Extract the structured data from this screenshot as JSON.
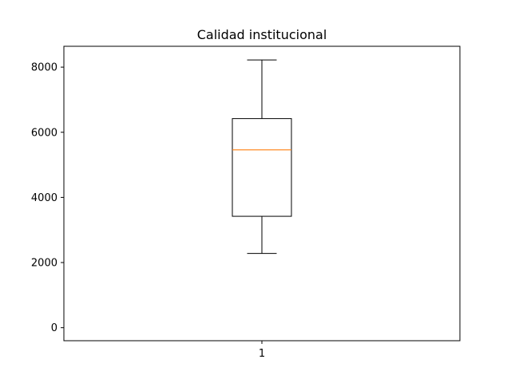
{
  "chart_data": {
    "type": "boxplot",
    "title": "Calidad institucional",
    "xlabel": "",
    "ylabel": "",
    "categories": [
      "1"
    ],
    "series": [
      {
        "whisker_low": 2280,
        "q1": 3420,
        "median": 5460,
        "q3": 6420,
        "whisker_high": 8220
      }
    ],
    "ylim": [
      -400,
      8640
    ],
    "yticks": [
      0,
      2000,
      4000,
      6000,
      8000
    ],
    "grid": false,
    "colors": {
      "box": "#000000",
      "median": "#ff7f0e",
      "axes": "#000000"
    }
  }
}
